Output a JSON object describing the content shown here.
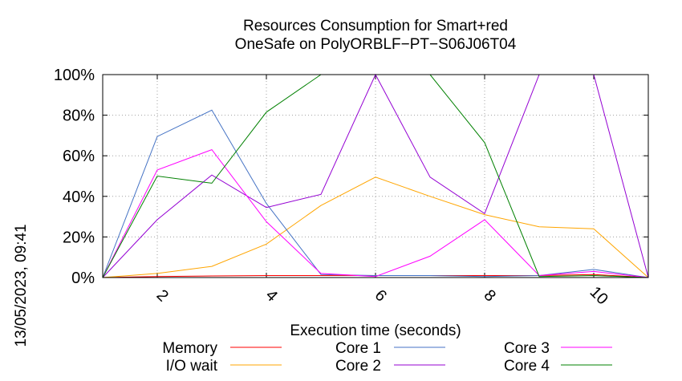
{
  "timestamp": "13/05/2023, 09:41",
  "chart_data": {
    "type": "line",
    "title": [
      "Resources Consumption for Smart+red",
      "OneSafe on PolyORBLF−PT−S06J06T04"
    ],
    "xlabel": "Execution time (seconds)",
    "ylabel": "",
    "xlim": [
      1,
      11
    ],
    "ylim": [
      0,
      100
    ],
    "xticks": [
      2,
      4,
      6,
      8,
      10
    ],
    "yticks": [
      0,
      20,
      40,
      60,
      80,
      100
    ],
    "ytick_labels": [
      "0%",
      "20%",
      "40%",
      "60%",
      "80%",
      "100%"
    ],
    "grid": true,
    "legend_position": "bottom",
    "x": [
      1,
      2,
      3,
      4,
      5,
      6,
      7,
      8,
      9,
      10,
      11
    ],
    "series": [
      {
        "name": "Memory",
        "color": "#ff0000",
        "values": [
          0,
          0.5,
          0.8,
          1,
          1,
          1,
          1,
          1,
          1,
          1.5,
          0
        ]
      },
      {
        "name": "I/O wait",
        "color": "#ffa500",
        "values": [
          0,
          2,
          5.5,
          16.5,
          35.5,
          49.5,
          40,
          31,
          25,
          24,
          0
        ]
      },
      {
        "name": "Core 1",
        "color": "#4472c4",
        "values": [
          0,
          69.5,
          82.5,
          36.5,
          1.5,
          1,
          1,
          0.5,
          1,
          4,
          0
        ]
      },
      {
        "name": "Core 2",
        "color": "#9400d3",
        "values": [
          0,
          28.5,
          50.5,
          34.5,
          41,
          100,
          49.5,
          31.5,
          100,
          100,
          0
        ]
      },
      {
        "name": "Core 3",
        "color": "#ff00ff",
        "values": [
          0,
          53,
          63,
          27.5,
          2,
          0.5,
          10.5,
          28.5,
          1,
          3,
          0
        ]
      },
      {
        "name": "Core 4",
        "color": "#008000",
        "values": [
          0,
          50,
          46.5,
          81.5,
          100,
          100,
          100,
          66.5,
          0.5,
          1,
          0
        ]
      }
    ]
  }
}
